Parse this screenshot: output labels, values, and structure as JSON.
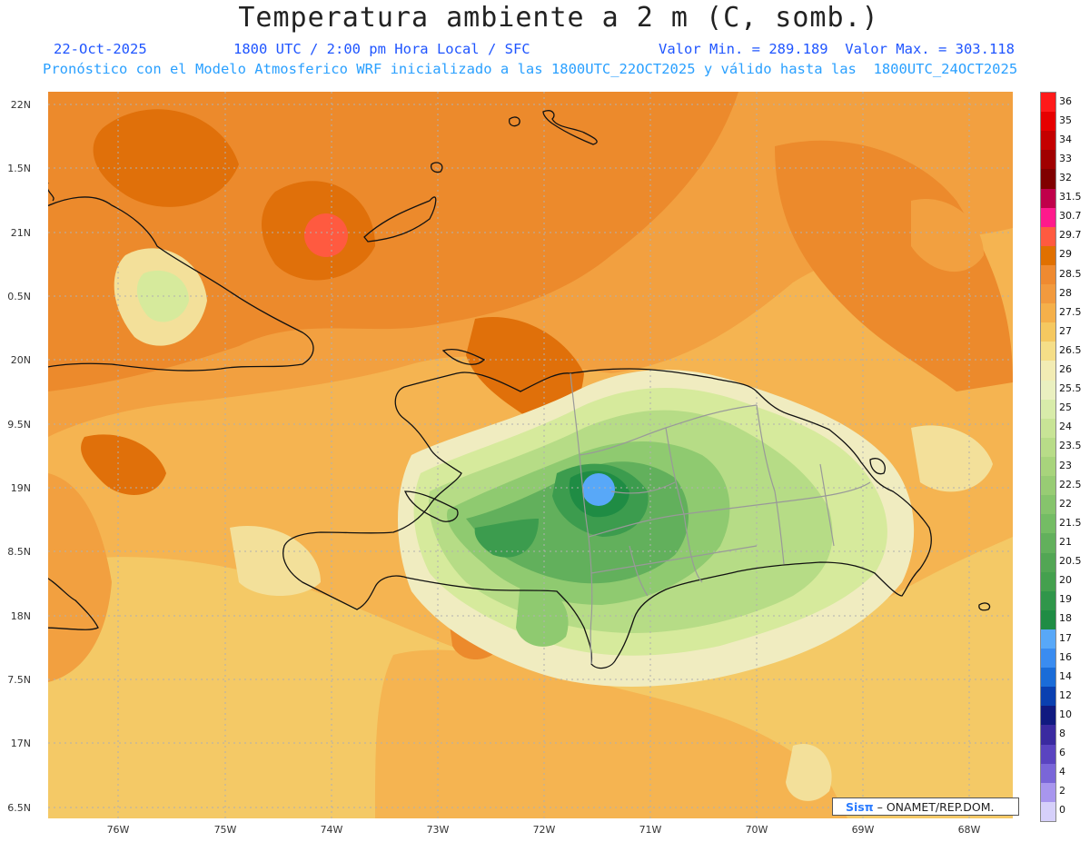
{
  "header": {
    "title": "Temperatura ambiente a 2 m (C, somb.)",
    "date": "22-Oct-2025",
    "time": "1800 UTC / 2:00 pm Hora Local / SFC",
    "minmax": "Valor Min. = 289.189  Valor Max. = 303.118",
    "model_line": "Pronóstico con el Modelo Atmosferico WRF inicializado a las 1800UTC_22OCT2025 y válido hasta las  1800UTC_24OCT2025"
  },
  "axes": {
    "lat_labels": [
      "22N",
      "1.5N",
      "21N",
      "0.5N",
      "20N",
      "9.5N",
      "19N",
      "8.5N",
      "18N",
      "7.5N",
      "17N",
      "6.5N"
    ],
    "lon_labels": [
      "76W",
      "75W",
      "74W",
      "73W",
      "72W",
      "71W",
      "70W",
      "69W",
      "68W"
    ]
  },
  "legend": {
    "levels": [
      "36",
      "35",
      "34",
      "33",
      "32",
      "31.5",
      "30.7",
      "29.7",
      "29",
      "28.5",
      "28",
      "27.5",
      "27",
      "26.5",
      "26",
      "25.5",
      "25",
      "24",
      "23.5",
      "23",
      "22.5",
      "22",
      "21.5",
      "21",
      "20.5",
      "20",
      "19",
      "18",
      "17",
      "16",
      "14",
      "12",
      "10",
      "8",
      "6",
      "4",
      "2",
      "0"
    ],
    "colors": [
      "#ff1a1a",
      "#e60000",
      "#c40000",
      "#a00000",
      "#800000",
      "#c0004a",
      "#ff1a8c",
      "#ff5a40",
      "#e07000",
      "#ef8a30",
      "#f29a3e",
      "#f5b04a",
      "#f5c860",
      "#f5de88",
      "#f2ecb4",
      "#eaf0c0",
      "#d8ecaa",
      "#c8e496",
      "#b8dc88",
      "#a8d47c",
      "#98cc74",
      "#86c46c",
      "#74bc64",
      "#62b05c",
      "#52a654",
      "#44a04e",
      "#30964a",
      "#1f8c44",
      "#58a8f8",
      "#3a8cf0",
      "#1a6cd8",
      "#0a40b0",
      "#101a80",
      "#3a2aa0",
      "#5a44c0",
      "#7a66d8",
      "#a896ee",
      "#d6d0fa"
    ]
  },
  "map": {
    "field_colors": {
      "deep_orange": "#e0700a",
      "orange": "#ec8a2c",
      "light_orange": "#f2a040",
      "tan": "#f5b451",
      "yellow": "#f4c966",
      "pale_yellow": "#f3e09a",
      "cream": "#f0ecc0",
      "light_green": "#d6ea9c",
      "green_1": "#b6dc86",
      "green_2": "#8fca70",
      "green_3": "#62b05c",
      "green_4": "#3c9c4e",
      "green_5": "#1f8c44",
      "blue_min": "#58a8f8",
      "red_max": "#ff5a40"
    },
    "credit": "ONAMET/REP.DOM.",
    "credit_logo": "Sisπ"
  }
}
